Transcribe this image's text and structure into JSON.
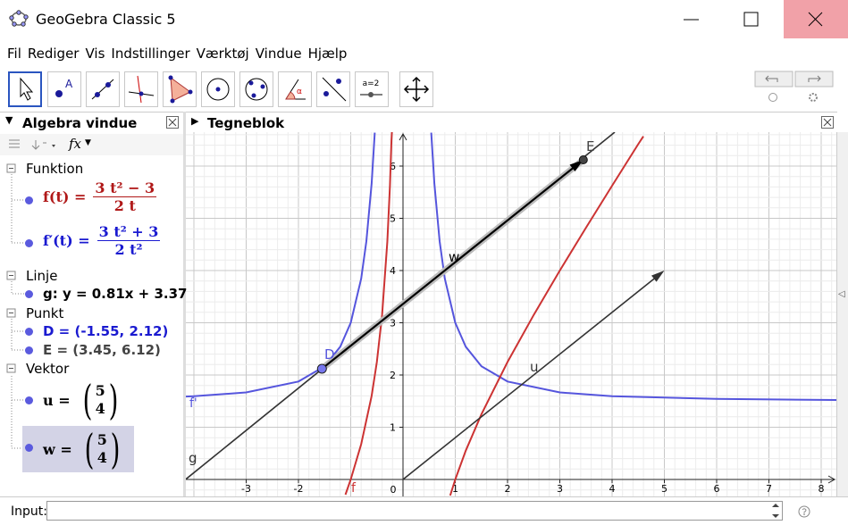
{
  "window": {
    "title": "GeoGebra Classic 5"
  },
  "menu": [
    "Fil",
    "Rediger",
    "Vis",
    "Indstillinger",
    "Værktøj",
    "Vindue",
    "Hjælp"
  ],
  "toolbar": {
    "slider_label": "a=2"
  },
  "algebra": {
    "title": "Algebra vindue",
    "input_style_label": "fx",
    "groups": [
      {
        "name": "Funktion",
        "items": [
          {
            "lhs": "f(t) =",
            "numerator": "3 t² − 3",
            "denominator": "2 t"
          },
          {
            "lhs": "f′(t) =",
            "numerator": "3 t² + 3",
            "denominator": "2 t²"
          }
        ]
      },
      {
        "name": "Linje",
        "items": [
          {
            "text": "g: y = 0.81x + 3.37"
          }
        ]
      },
      {
        "name": "Punkt",
        "items": [
          {
            "text": "D = (-1.55, 2.12)"
          },
          {
            "text": "E = (3.45, 6.12)"
          }
        ]
      },
      {
        "name": "Vektor",
        "items": [
          {
            "lhs": "u =",
            "top": "5",
            "bottom": "4"
          },
          {
            "lhs": "w =",
            "top": "5",
            "bottom": "4"
          }
        ]
      }
    ]
  },
  "graphics": {
    "title": "Tegneblok",
    "xticks": [
      -3,
      -2,
      1,
      2,
      3,
      4,
      5,
      6,
      7,
      8
    ],
    "yticks": [
      1,
      2,
      3,
      4,
      5,
      6
    ],
    "origin": 0,
    "labels": {
      "D": "D",
      "E": "E",
      "w": "w",
      "u": "u",
      "f": "f",
      "f_prime": "f'",
      "g": "g"
    }
  },
  "input": {
    "label": "Input:"
  }
}
